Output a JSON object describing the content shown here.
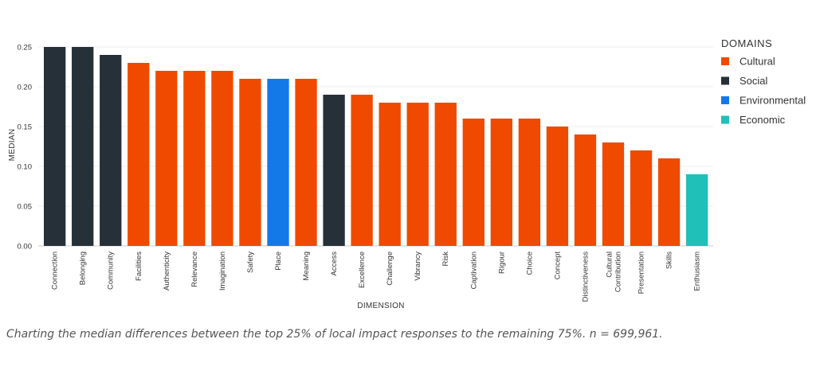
{
  "chart_data": {
    "type": "bar",
    "ylabel": "MEDIAN",
    "xlabel": "DIMENSION",
    "ylim": [
      0,
      0.25
    ],
    "yticks": [
      "0.00",
      "0.05",
      "0.10",
      "0.15",
      "0.20",
      "0.25"
    ],
    "grid": true,
    "legend": {
      "title": "DOMAINS",
      "placement": "top-right",
      "entries": [
        {
          "name": "Cultural",
          "color": "#f04a00"
        },
        {
          "name": "Social",
          "color": "#263038"
        },
        {
          "name": "Environmental",
          "color": "#1479e8"
        },
        {
          "name": "Economic",
          "color": "#1ec0b8"
        }
      ]
    },
    "bars": [
      {
        "label": "Connection",
        "value": 0.25,
        "domain": "Social"
      },
      {
        "label": "Belonging",
        "value": 0.25,
        "domain": "Social"
      },
      {
        "label": "Community",
        "value": 0.24,
        "domain": "Social"
      },
      {
        "label": "Facilities",
        "value": 0.23,
        "domain": "Cultural"
      },
      {
        "label": "Authenticity",
        "value": 0.22,
        "domain": "Cultural"
      },
      {
        "label": "Relevance",
        "value": 0.22,
        "domain": "Cultural"
      },
      {
        "label": "Imagination",
        "value": 0.22,
        "domain": "Cultural"
      },
      {
        "label": "Safety",
        "value": 0.21,
        "domain": "Cultural"
      },
      {
        "label": "Place",
        "value": 0.21,
        "domain": "Environmental"
      },
      {
        "label": "Meaning",
        "value": 0.21,
        "domain": "Cultural"
      },
      {
        "label": "Access",
        "value": 0.19,
        "domain": "Social"
      },
      {
        "label": "Excellence",
        "value": 0.19,
        "domain": "Cultural"
      },
      {
        "label": "Challenge",
        "value": 0.18,
        "domain": "Cultural"
      },
      {
        "label": "Vibrancy",
        "value": 0.18,
        "domain": "Cultural"
      },
      {
        "label": "Risk",
        "value": 0.18,
        "domain": "Cultural"
      },
      {
        "label": "Captivation",
        "value": 0.16,
        "domain": "Cultural"
      },
      {
        "label": "Rigour",
        "value": 0.16,
        "domain": "Cultural"
      },
      {
        "label": "Choice",
        "value": 0.16,
        "domain": "Cultural"
      },
      {
        "label": "Concept",
        "value": 0.15,
        "domain": "Cultural"
      },
      {
        "label": "Distinctiveness",
        "value": 0.14,
        "domain": "Cultural"
      },
      {
        "label": "Cultural Contribution",
        "value": 0.13,
        "domain": "Cultural"
      },
      {
        "label": "Presentation",
        "value": 0.12,
        "domain": "Cultural"
      },
      {
        "label": "Skills",
        "value": 0.11,
        "domain": "Cultural"
      },
      {
        "label": "Enthusiasm",
        "value": 0.09,
        "domain": "Economic"
      }
    ]
  },
  "caption": "Charting the median differences between the top 25% of local impact responses to the remaining 75%. n =  699,961."
}
